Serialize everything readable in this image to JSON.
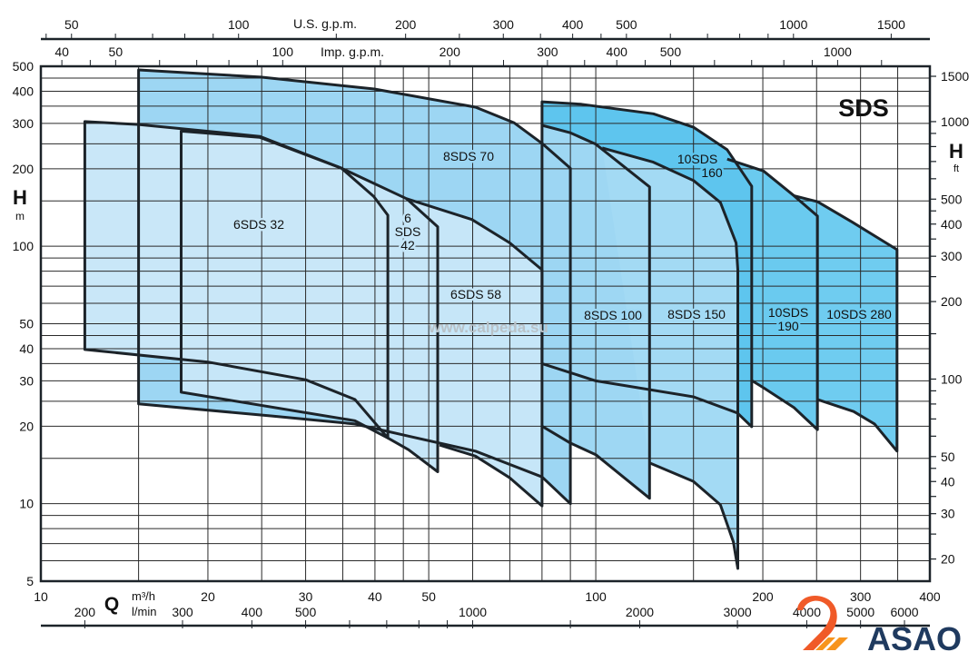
{
  "chart_data": {
    "type": "area",
    "title": "SDS",
    "x_axis": {
      "quantity": "Q",
      "unit": "m³/h",
      "scale": "log",
      "range": [
        10,
        400
      ],
      "tick_labels": [
        10,
        20,
        30,
        40,
        50,
        100,
        200,
        300,
        400
      ],
      "grid": [
        10,
        15,
        20,
        25,
        30,
        35,
        40,
        45,
        50,
        60,
        70,
        80,
        90,
        100,
        150,
        200,
        250,
        300,
        350,
        400
      ]
    },
    "x_axis_lmin": {
      "unit": "l/min",
      "tick_labels": [
        200,
        300,
        400,
        500,
        1000,
        2000,
        3000,
        4000,
        5000,
        6000
      ],
      "ticks": [
        200,
        300,
        400,
        500,
        600,
        700,
        800,
        900,
        1000,
        1500,
        2000,
        3000,
        4000,
        5000,
        6000
      ]
    },
    "x_axis_usgpm": {
      "unit": "U.S. g.p.m.",
      "tick_labels": [
        50,
        100,
        200,
        300,
        400,
        500,
        1000,
        1500
      ],
      "ticks": [
        45,
        50,
        60,
        70,
        80,
        90,
        100,
        150,
        200,
        250,
        300,
        350,
        400,
        450,
        500,
        600,
        700,
        800,
        900,
        1000,
        1500
      ]
    },
    "x_axis_impgpm": {
      "unit": "Imp. g.p.m.",
      "tick_labels": [
        40,
        50,
        100,
        200,
        300,
        400,
        500,
        1000
      ],
      "ticks": [
        40,
        45,
        50,
        60,
        70,
        80,
        90,
        100,
        150,
        200,
        250,
        300,
        350,
        400,
        450,
        500,
        600,
        700,
        800,
        900,
        1000,
        1200
      ]
    },
    "y_axis": {
      "quantity": "H",
      "unit": "m",
      "scale": "log",
      "range": [
        5,
        500
      ],
      "tick_labels": [
        500,
        400,
        300,
        200,
        100,
        50,
        40,
        30,
        20,
        10,
        5
      ],
      "grid": [
        500,
        450,
        400,
        350,
        300,
        250,
        200,
        150,
        100,
        90,
        80,
        70,
        60,
        50,
        45,
        40,
        35,
        30,
        25,
        20,
        15,
        10,
        9,
        8,
        7,
        6,
        5
      ]
    },
    "y_axis_ft": {
      "quantity": "H",
      "unit": "ft",
      "tick_labels": [
        1500,
        1000,
        500,
        400,
        300,
        200,
        100,
        50,
        40,
        30,
        20
      ],
      "ticks": [
        1500,
        1000,
        900,
        800,
        700,
        600,
        500,
        450,
        400,
        350,
        300,
        250,
        200,
        150,
        100,
        90,
        80,
        70,
        60,
        50,
        45,
        40,
        35,
        30,
        25,
        20
      ]
    },
    "watermark": "www.calpeda.su",
    "series": [
      {
        "name": "10SDS 280",
        "label_lines": [
          "10SDS 280"
        ],
        "color": "#6fccf0",
        "closed": false,
        "points": [
          [
            227.6,
            157
          ],
          [
            250.9,
            149
          ],
          [
            290,
            124
          ],
          [
            349,
            97
          ],
          [
            349,
            16
          ],
          [
            318,
            20.4
          ],
          [
            291.6,
            22.8
          ],
          [
            250.9,
            25.4
          ]
        ]
      },
      {
        "name": "10SDS 190",
        "label_lines": [
          "10SDS",
          "190"
        ],
        "color": "#6acaef",
        "closed": false,
        "points": [
          [
            172.5,
            218
          ],
          [
            200.6,
            196
          ],
          [
            227.6,
            157
          ],
          [
            250.9,
            131
          ],
          [
            250.9,
            19.4
          ],
          [
            227.6,
            23.6
          ],
          [
            200.6,
            28.2
          ],
          [
            191,
            30.1
          ]
        ]
      },
      {
        "name": "10SDS 160",
        "label_lines": [
          "10SDS",
          "160"
        ],
        "color": "#5ec5ee",
        "closed": true,
        "points": [
          [
            80,
            364
          ],
          [
            94.2,
            356
          ],
          [
            127,
            327
          ],
          [
            150,
            290
          ],
          [
            172.5,
            237
          ],
          [
            191,
            171
          ],
          [
            191,
            19.9
          ],
          [
            180,
            22.5
          ],
          [
            150,
            26
          ],
          [
            100,
            30
          ],
          [
            80,
            35
          ]
        ]
      },
      {
        "name": "8SDS 100",
        "label_lines": [
          "8SDS 100"
        ],
        "color": "#9ed7f3",
        "closed": false,
        "points": [
          [
            80,
            295
          ],
          [
            90,
            276
          ],
          [
            100,
            249
          ],
          [
            125,
            170
          ],
          [
            125,
            10.5
          ],
          [
            100,
            15.5
          ],
          [
            90,
            17.2
          ],
          [
            80,
            20
          ]
        ]
      },
      {
        "name": "8SDS 150",
        "label_lines": [
          "8SDS 150"
        ],
        "color": "#a3daf4",
        "closed": false,
        "points": [
          [
            102.7,
            241
          ],
          [
            127,
            212
          ],
          [
            150,
            180
          ],
          [
            167.7,
            148
          ],
          [
            179,
            103
          ],
          [
            180.3,
            81
          ],
          [
            180.3,
            5.6
          ],
          [
            177,
            7.1
          ],
          [
            167.7,
            9.9
          ],
          [
            150,
            12.2
          ],
          [
            125,
            14.4
          ]
        ]
      },
      {
        "name": "8SDS 70",
        "label_lines": [
          "8SDS 70"
        ],
        "color": "#9dd6f3",
        "closed": true,
        "points": [
          [
            15,
            484
          ],
          [
            24.9,
            454
          ],
          [
            39.9,
            408
          ],
          [
            60.7,
            347
          ],
          [
            71.2,
            302
          ],
          [
            80,
            251
          ],
          [
            90,
            201
          ],
          [
            90,
            10
          ],
          [
            80,
            12.7
          ],
          [
            60.7,
            16
          ],
          [
            46,
            18.3
          ],
          [
            36.8,
            20.4
          ],
          [
            26.1,
            21.9
          ],
          [
            15,
            24.4
          ]
        ]
      },
      {
        "name": "6SDS 58",
        "label_lines": [
          "6SDS 58"
        ],
        "color": "#c6e6f8",
        "closed": false,
        "points": [
          [
            45.6,
            153
          ],
          [
            59.8,
            127
          ],
          [
            70,
            103
          ],
          [
            80,
            81
          ],
          [
            80,
            9.8
          ],
          [
            70,
            12.6
          ],
          [
            60.7,
            15.3
          ],
          [
            52.3,
            16.9
          ]
        ]
      },
      {
        "name": "6SDS 42",
        "label_lines": [
          "6",
          "SDS",
          "42"
        ],
        "color": "#c6e6f8",
        "closed": true,
        "points": [
          [
            17.9,
            280
          ],
          [
            24.8,
            265
          ],
          [
            34.8,
            201
          ],
          [
            45.6,
            153
          ],
          [
            51.9,
            119
          ],
          [
            51.9,
            13.3
          ],
          [
            46,
            16.2
          ],
          [
            42.2,
            18
          ],
          [
            36.8,
            21
          ],
          [
            17.9,
            27.1
          ]
        ]
      },
      {
        "name": "6SDS 32",
        "label_lines": [
          "6SDS 32"
        ],
        "color": "#c9e7f8",
        "closed": true,
        "points": [
          [
            12,
            305
          ],
          [
            15,
            297
          ],
          [
            24.8,
            267
          ],
          [
            34.8,
            201
          ],
          [
            39.8,
            156
          ],
          [
            42.2,
            132
          ],
          [
            42.2,
            18
          ],
          [
            36.8,
            25.4
          ],
          [
            30,
            30.3
          ],
          [
            20,
            35.5
          ],
          [
            12,
            39.7
          ]
        ]
      }
    ]
  },
  "logo": {
    "text": "ASAO",
    "colors": {
      "mark": "#f05a28",
      "stripe": "#f7941d",
      "text": "#1f3a5f"
    }
  }
}
